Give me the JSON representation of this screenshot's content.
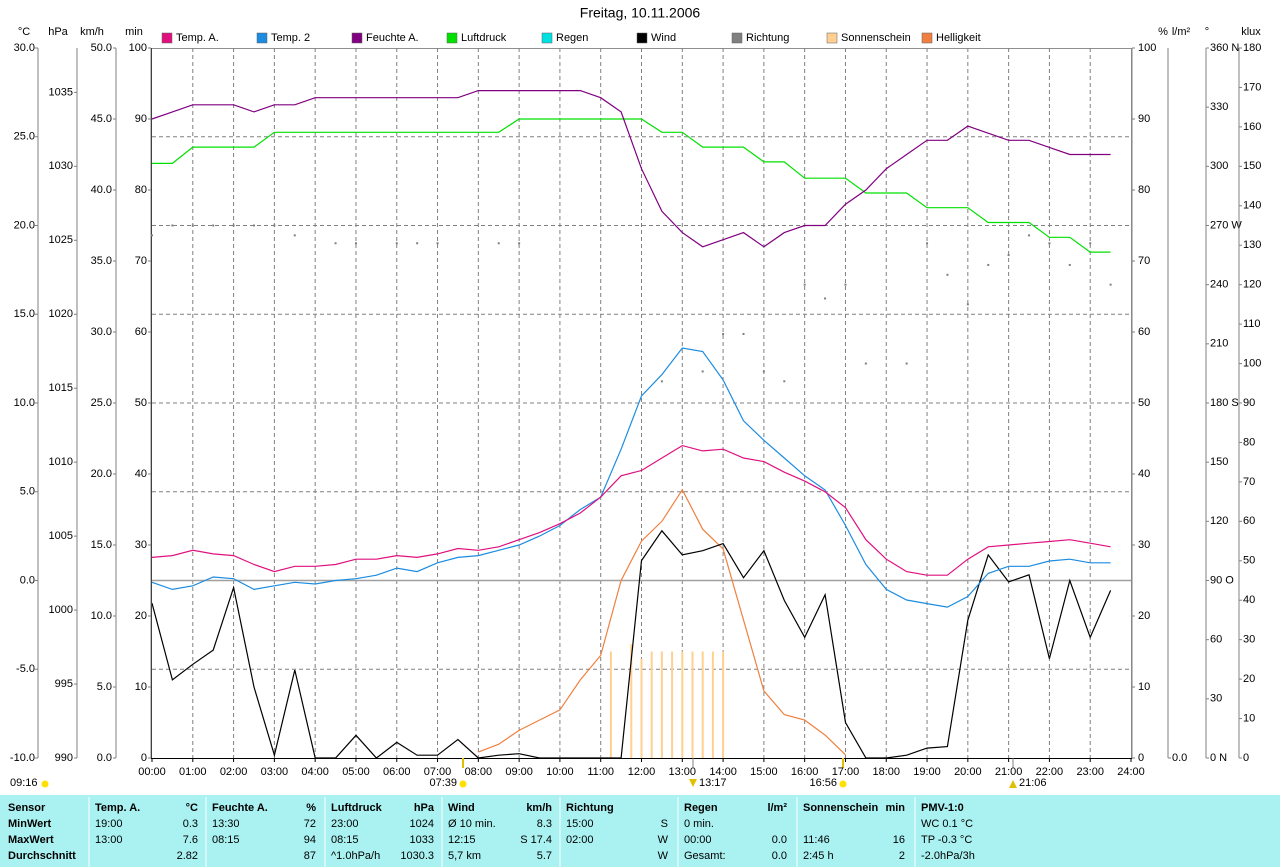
{
  "chart_data": {
    "type": "line",
    "title": "Freitag, 10.11.2006",
    "grid": true,
    "legend": "top",
    "xlim": [
      0,
      24
    ],
    "xticks": [
      {
        "value": 0,
        "label": "00:00"
      },
      {
        "value": 1,
        "label": "01:00"
      },
      {
        "value": 2,
        "label": "02:00"
      },
      {
        "value": 3,
        "label": "03:00"
      },
      {
        "value": 4,
        "label": "04:00"
      },
      {
        "value": 5,
        "label": "05:00"
      },
      {
        "value": 6,
        "label": "06:00"
      },
      {
        "value": 7,
        "label": "07:00"
      },
      {
        "value": 8,
        "label": "08:00"
      },
      {
        "value": 9,
        "label": "09:00"
      },
      {
        "value": 10,
        "label": "10:00"
      },
      {
        "value": 11,
        "label": "11:00"
      },
      {
        "value": 12,
        "label": "12:00"
      },
      {
        "value": 13,
        "label": "13:00"
      },
      {
        "value": 14,
        "label": "14:00"
      },
      {
        "value": 15,
        "label": "15:00"
      },
      {
        "value": 16,
        "label": "16:00"
      },
      {
        "value": 17,
        "label": "17:00"
      },
      {
        "value": 18,
        "label": "18:00"
      },
      {
        "value": 19,
        "label": "19:00"
      },
      {
        "value": 20,
        "label": "20:00"
      },
      {
        "value": 21,
        "label": "21:00"
      },
      {
        "value": 22,
        "label": "22:00"
      },
      {
        "value": 23,
        "label": "23:00"
      },
      {
        "value": 24,
        "label": "24:00"
      }
    ],
    "x": [
      0,
      0.5,
      1,
      1.5,
      2,
      2.5,
      3,
      3.5,
      4,
      4.5,
      5,
      5.5,
      6,
      6.5,
      7,
      7.5,
      8,
      8.5,
      9,
      9.5,
      10,
      10.5,
      11,
      11.5,
      12,
      12.5,
      13,
      13.5,
      14,
      14.5,
      15,
      15.5,
      16,
      16.5,
      17,
      17.5,
      18,
      18.5,
      19,
      19.5,
      20,
      20.5,
      21,
      21.5,
      22,
      22.5,
      23,
      23.5,
      24
    ],
    "axes": [
      {
        "unit": "°C",
        "side": "left",
        "color": "#d0107f",
        "ylim": [
          -10,
          30
        ],
        "grid": true,
        "yticks": [
          {
            "value": -10,
            "label": "-10.0"
          },
          {
            "value": -5,
            "label": "-5.0"
          },
          {
            "value": 0,
            "label": "0.0"
          },
          {
            "value": 5,
            "label": "5.0"
          },
          {
            "value": 10,
            "label": "10.0"
          },
          {
            "value": 15,
            "label": "15.0"
          },
          {
            "value": 20,
            "label": "20.0"
          },
          {
            "value": 25,
            "label": "25.0"
          },
          {
            "value": 30,
            "label": "30.0"
          }
        ]
      },
      {
        "unit": "hPa",
        "side": "left",
        "color": "#00b000",
        "ylim": [
          990,
          1038
        ],
        "yticks": [
          990,
          995,
          1000,
          1005,
          1010,
          1015,
          1020,
          1025,
          1030,
          1035
        ]
      },
      {
        "unit": "km/h",
        "side": "left",
        "color": "#000000",
        "ylim": [
          0,
          50
        ],
        "yticks": [
          {
            "value": 0,
            "label": "0.0"
          },
          {
            "value": 5,
            "label": "5.0"
          },
          {
            "value": 10,
            "label": "10.0"
          },
          {
            "value": 15,
            "label": "15.0"
          },
          {
            "value": 20,
            "label": "20.0"
          },
          {
            "value": 25,
            "label": "25.0"
          },
          {
            "value": 30,
            "label": "30.0"
          },
          {
            "value": 35,
            "label": "35.0"
          },
          {
            "value": 40,
            "label": "40.0"
          },
          {
            "value": 45,
            "label": "45.0"
          },
          {
            "value": 50,
            "label": "50.0"
          }
        ]
      },
      {
        "unit": "min",
        "side": "left",
        "color": "#ffc080",
        "ylim": [
          0,
          100
        ],
        "yticks": [
          0,
          10,
          20,
          30,
          40,
          50,
          60,
          70,
          80,
          90,
          100
        ]
      },
      {
        "unit": "%",
        "side": "right",
        "color": "#800080",
        "ylim": [
          0,
          100
        ],
        "yticks": [
          0,
          10,
          20,
          30,
          40,
          50,
          60,
          70,
          80,
          90,
          100
        ]
      },
      {
        "unit": "l/m²",
        "side": "right",
        "color": "#00c0c0",
        "yticks": [
          {
            "value": 0,
            "label": "0.0"
          }
        ]
      },
      {
        "unit": "°",
        "side": "right",
        "color": "#808080",
        "ylim": [
          0,
          360
        ],
        "yticks": [
          {
            "value": 0,
            "label": "0 N"
          },
          30,
          60,
          {
            "value": 90,
            "label": "90 O"
          },
          120,
          150,
          {
            "value": 180,
            "label": "180 S"
          },
          210,
          240,
          {
            "value": 270,
            "label": "270 W"
          },
          300,
          330,
          {
            "value": 360,
            "label": "360 N"
          }
        ]
      },
      {
        "unit": "klux",
        "side": "right",
        "color": "#f07030",
        "ylim": [
          0,
          180
        ],
        "yticks": [
          0,
          10,
          20,
          30,
          40,
          50,
          60,
          70,
          80,
          90,
          100,
          110,
          120,
          130,
          140,
          150,
          160,
          170,
          180
        ]
      }
    ],
    "series": [
      {
        "name": "Temp. A.",
        "type": "line",
        "axis": "°C",
        "color": "#e0107f",
        "values": [
          1.3,
          1.4,
          1.7,
          1.5,
          1.4,
          0.9,
          0.5,
          0.8,
          0.8,
          0.9,
          1.2,
          1.2,
          1.4,
          1.3,
          1.5,
          1.8,
          1.7,
          1.9,
          2.3,
          2.7,
          3.2,
          3.8,
          4.7,
          5.9,
          6.2,
          6.9,
          7.6,
          7.3,
          7.4,
          6.9,
          6.7,
          6.1,
          5.6,
          5.0,
          4.1,
          2.3,
          1.2,
          0.5,
          0.3,
          0.3,
          1.2,
          1.9,
          2.0,
          2.1,
          2.2,
          2.3,
          2.1,
          1.9,
          null
        ]
      },
      {
        "name": "Temp. 2",
        "type": "line",
        "axis": "°C",
        "color": "#1c8ce0",
        "values": [
          -0.1,
          -0.5,
          -0.3,
          0.2,
          0.1,
          -0.5,
          -0.3,
          -0.1,
          -0.2,
          0.0,
          0.1,
          0.3,
          0.7,
          0.5,
          1.0,
          1.3,
          1.4,
          1.7,
          2.0,
          2.5,
          3.1,
          4.0,
          4.7,
          7.4,
          10.4,
          11.6,
          13.1,
          12.9,
          11.3,
          9.0,
          7.9,
          6.9,
          5.9,
          5.1,
          3.1,
          0.9,
          -0.5,
          -1.1,
          -1.3,
          -1.5,
          -0.9,
          0.4,
          0.8,
          0.8,
          1.1,
          1.2,
          1.0,
          1.0,
          null
        ]
      },
      {
        "name": "Feuchte A.",
        "type": "line",
        "axis": "%",
        "color": "#800080",
        "values": [
          90,
          91,
          92,
          92,
          92,
          91,
          92,
          92,
          93,
          93,
          93,
          93,
          93,
          93,
          93,
          93,
          94,
          94,
          94,
          94,
          94,
          94,
          93,
          91,
          83,
          77,
          74,
          72,
          73,
          74,
          72,
          74,
          75,
          75,
          78,
          80,
          83,
          85,
          87,
          87,
          89,
          88,
          87,
          87,
          86,
          85,
          85,
          85,
          null
        ]
      },
      {
        "name": "Luftdruck",
        "type": "line",
        "axis": "hPa",
        "color": "#00e000",
        "values": [
          1030.2,
          1030.2,
          1031.3,
          1031.3,
          1031.3,
          1031.3,
          1032.3,
          1032.3,
          1032.3,
          1032.3,
          1032.3,
          1032.3,
          1032.3,
          1032.3,
          1032.3,
          1032.3,
          1032.3,
          1032.3,
          1033.2,
          1033.2,
          1033.2,
          1033.2,
          1033.2,
          1033.2,
          1033.2,
          1032.3,
          1032.3,
          1031.3,
          1031.3,
          1031.3,
          1030.3,
          1030.3,
          1029.2,
          1029.2,
          1029.2,
          1028.2,
          1028.2,
          1028.2,
          1027.2,
          1027.2,
          1027.2,
          1026.2,
          1026.2,
          1026.2,
          1025.2,
          1025.2,
          1024.2,
          1024.2,
          null
        ]
      },
      {
        "name": "Regen",
        "type": "line",
        "axis": "l/m²",
        "color": "#00e0e0"
      },
      {
        "name": "Wind",
        "type": "line",
        "axis": "km/h",
        "color": "#000000",
        "values": [
          10.9,
          5.5,
          6.6,
          7.6,
          12.0,
          5.0,
          0.2,
          6.2,
          0,
          0,
          1.6,
          0,
          1.1,
          0.2,
          0.2,
          1.3,
          0,
          0.2,
          0.3,
          0,
          0,
          0,
          0,
          0,
          13.9,
          16.0,
          14.3,
          14.6,
          15.1,
          12.7,
          14.6,
          11.1,
          8.5,
          11.5,
          2.5,
          0,
          0,
          0.2,
          0.7,
          0.8,
          9.7,
          14.3,
          12.4,
          12.9,
          7.0,
          12.5,
          8.5,
          11.8,
          null
        ]
      },
      {
        "name": "Richtung",
        "type": "scatter",
        "axis": "°",
        "color": "#808080",
        "values": [
          265,
          270,
          270,
          270,
          270,
          270,
          270,
          265,
          null,
          261,
          261,
          null,
          261,
          261,
          261,
          null,
          null,
          261,
          261,
          null,
          null,
          null,
          null,
          null,
          null,
          191,
          null,
          196,
          215,
          215,
          196,
          191,
          240,
          233,
          240,
          200,
          null,
          200,
          261,
          245,
          230,
          250,
          255,
          265,
          261,
          250,
          261,
          240,
          null
        ]
      },
      {
        "name": "Sonnenschein",
        "type": "bar",
        "axis": "min",
        "color": "#ffd090",
        "x": [
          11.25,
          11.75,
          12,
          12.25,
          12.5,
          12.75,
          13,
          13.25,
          13.5,
          13.75,
          14
        ],
        "values": [
          15,
          16,
          14,
          15,
          15,
          15,
          15,
          15,
          15,
          15,
          15
        ]
      },
      {
        "name": "Helligkeit",
        "type": "line",
        "axis": "klux",
        "color": "#f08040",
        "values": [
          null,
          null,
          null,
          null,
          null,
          null,
          null,
          null,
          null,
          null,
          null,
          null,
          null,
          null,
          null,
          null,
          1.5,
          3.5,
          7,
          9.6,
          12.2,
          19.8,
          26,
          45,
          55,
          60,
          68,
          58,
          53,
          35,
          17,
          11,
          9.6,
          5.8,
          0.8,
          null,
          null,
          null,
          null,
          null,
          null,
          null,
          null,
          null,
          null,
          null,
          null,
          null,
          null
        ]
      }
    ],
    "annotations": {
      "day_length": "09:16",
      "times": [
        "07:39",
        "13:17",
        "16:56",
        "21:06"
      ]
    }
  },
  "table": {
    "columns": [
      {
        "title": "Sensor",
        "cells": [
          "MinWert",
          "MaxWert",
          "Durchschnitt"
        ]
      },
      {
        "title": "Temp. A.",
        "unit": "°C",
        "cells": [
          [
            "19:00",
            "0.3"
          ],
          [
            "13:00",
            "7.6"
          ],
          [
            null,
            "2.82"
          ]
        ]
      },
      {
        "title": "Feuchte A.",
        "unit": "%",
        "cells": [
          [
            "13:30",
            "72"
          ],
          [
            "08:15",
            "94"
          ],
          [
            null,
            "87"
          ]
        ]
      },
      {
        "title": "Luftdruck",
        "unit": "hPa",
        "cells": [
          [
            "23:00",
            "1024"
          ],
          [
            "08:15",
            "1033"
          ],
          [
            "^1.0hPa/h",
            "1030.3"
          ]
        ]
      },
      {
        "title": "Wind",
        "unit": "km/h",
        "cells": [
          [
            "Ø 10 min.",
            "8.3"
          ],
          [
            "12:15",
            "S 17.4"
          ],
          [
            "5,7 km",
            "5.7"
          ]
        ]
      },
      {
        "title": "Richtung",
        "cells": [
          [
            "15:00",
            "S"
          ],
          [
            "02:00",
            "W"
          ],
          [
            null,
            "W"
          ]
        ]
      },
      {
        "title": "Regen",
        "unit": "l/m²",
        "cells": [
          [
            "0 min.",
            null
          ],
          [
            "00:00",
            "0.0"
          ],
          [
            "Gesamt:",
            "0.0"
          ]
        ]
      },
      {
        "title": "Sonnenschein",
        "unit": "min",
        "cells": [
          [
            null,
            null
          ],
          [
            "11:46",
            "16"
          ],
          [
            "2:45 h",
            "2"
          ]
        ]
      },
      {
        "title": "PMV-1:0",
        "cells": [
          [
            "WC 0.1 °C"
          ],
          [
            "TP -0.3 °C"
          ],
          [
            "-2.0hPa/3h"
          ]
        ]
      }
    ]
  }
}
